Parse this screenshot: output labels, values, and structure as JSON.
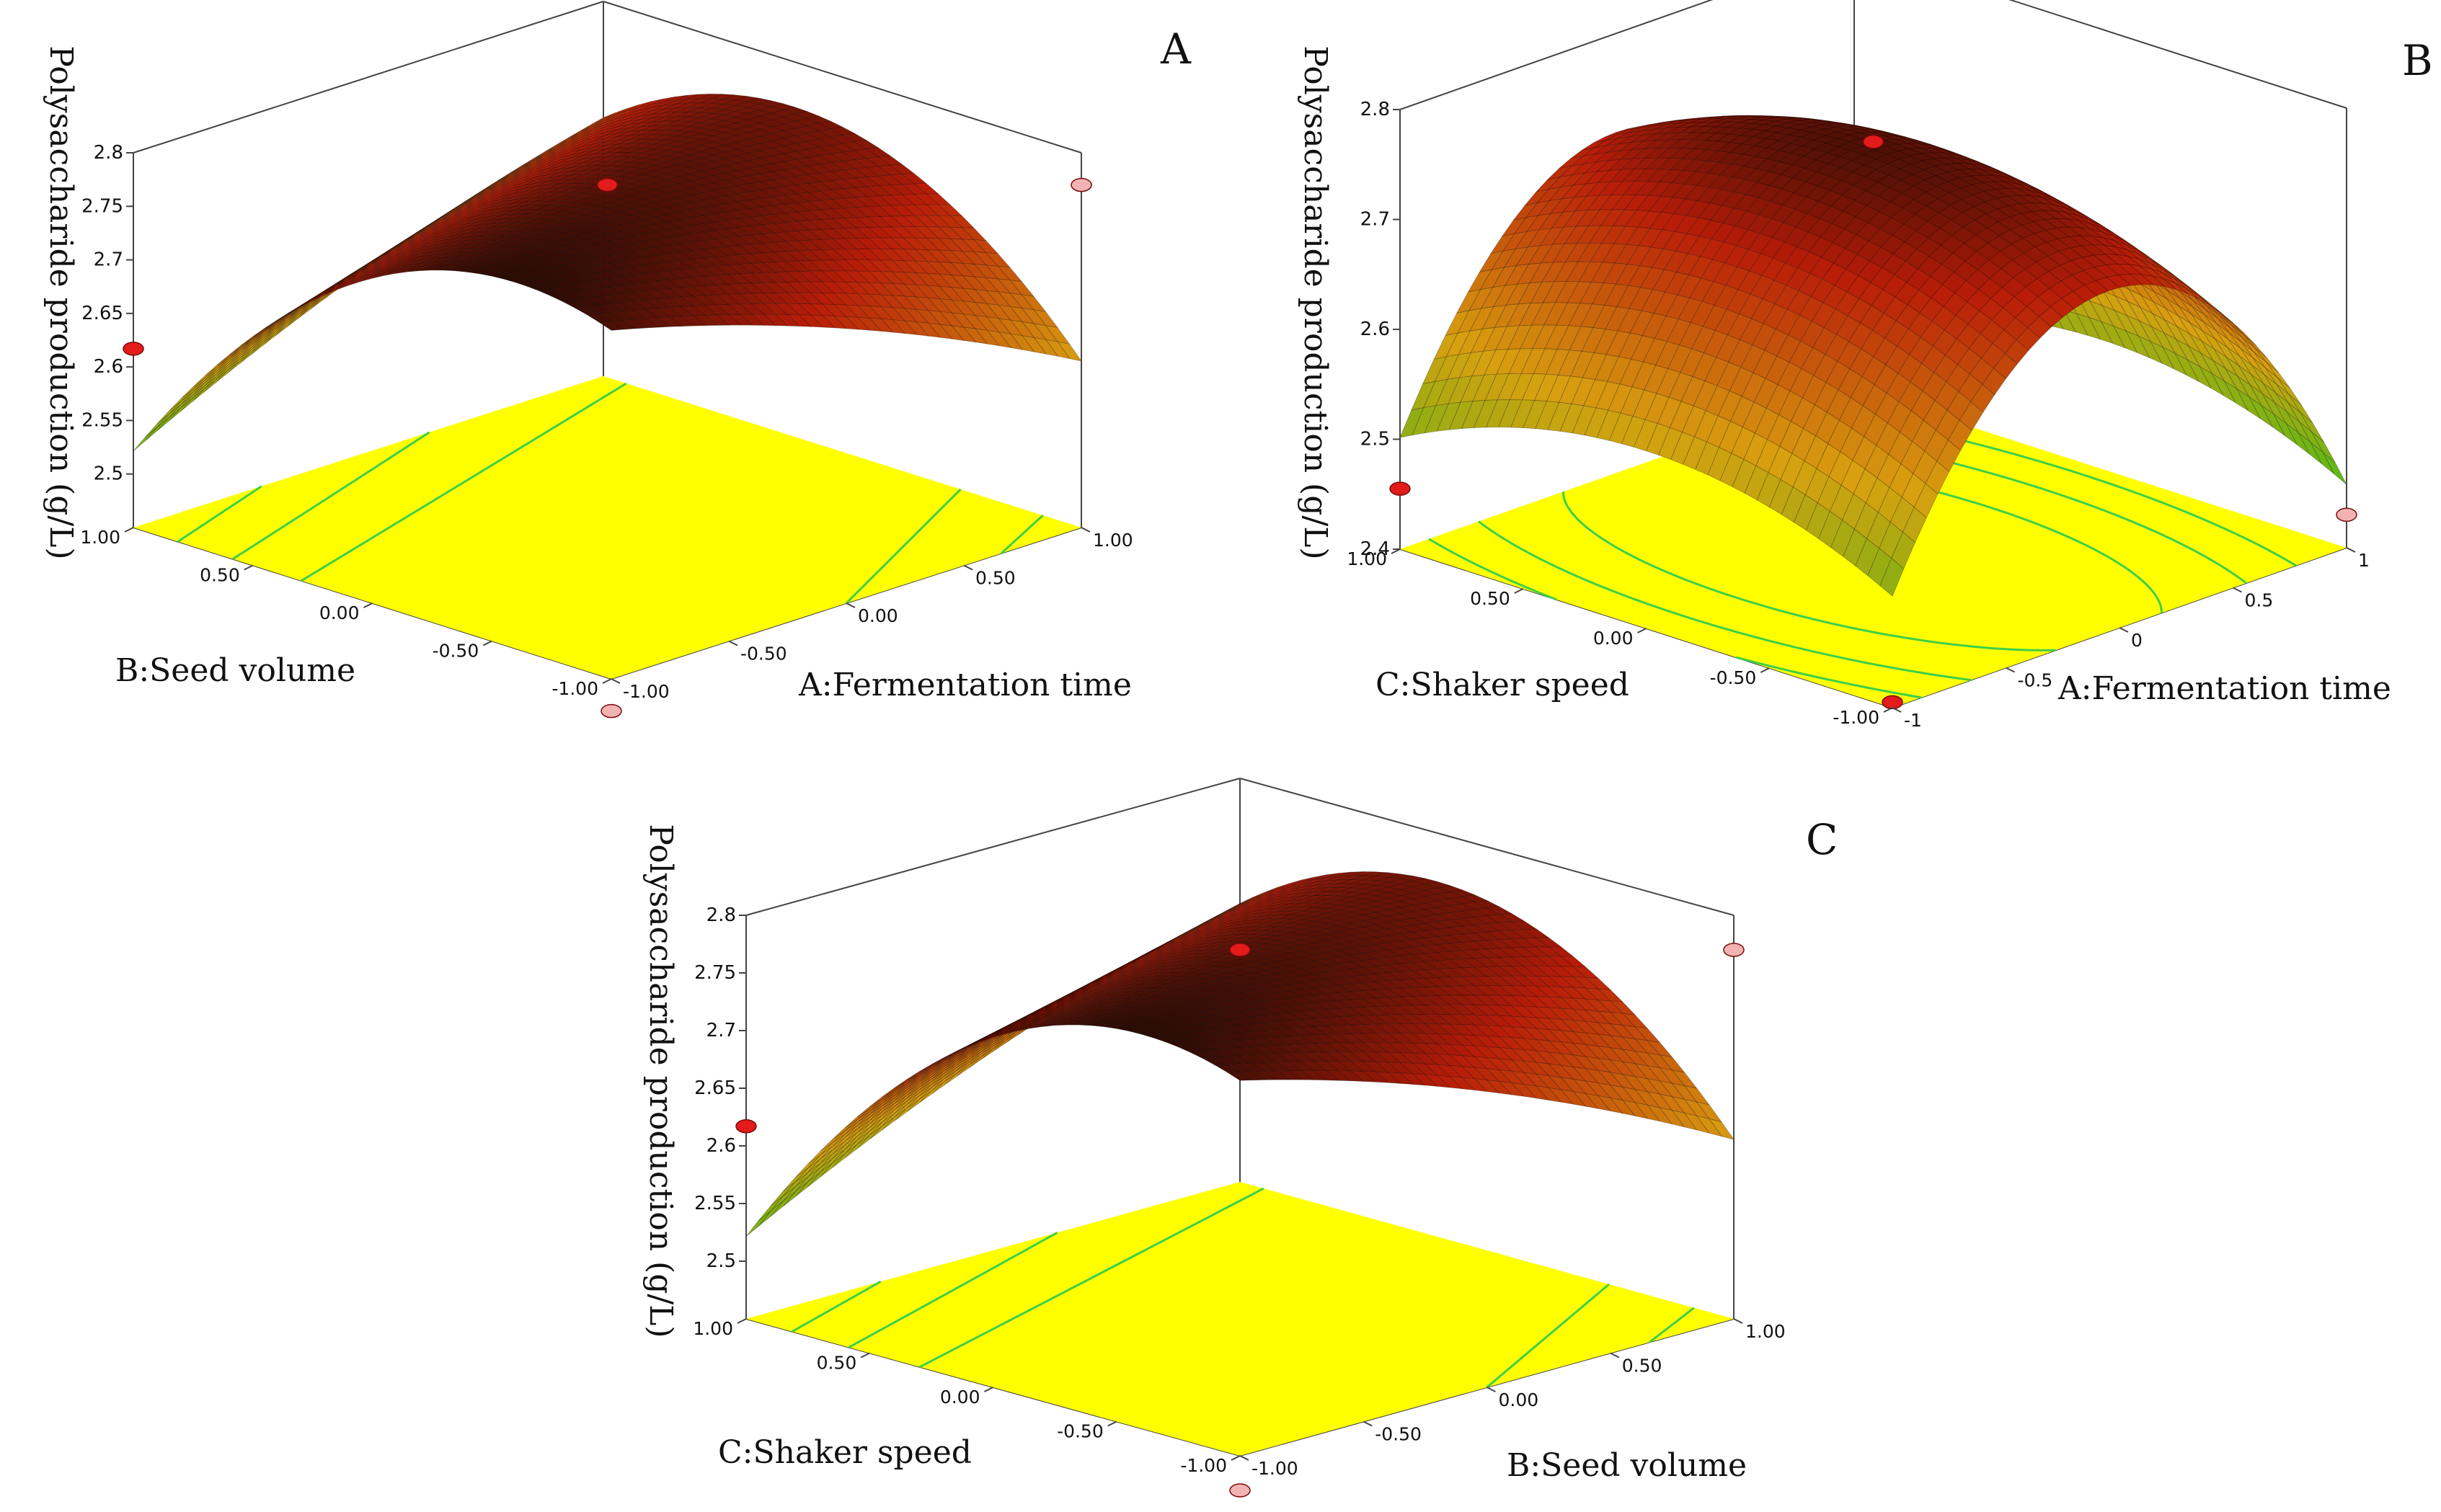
{
  "figure": {
    "panels": [
      "A",
      "B",
      "C"
    ]
  },
  "colors": {
    "floor": "#ffff00",
    "contour": "#3ecf4a",
    "surface_low": "#17c81a",
    "surface_mid": "#d8a010",
    "surface_high": "#b81c08",
    "surface_top": "#1a0a04",
    "point_red": "#e31b1b",
    "point_pink": "#f3b3b3"
  },
  "chart_data": [
    {
      "panel": "A",
      "type": "surface3d",
      "zlabel": "Polysaccharide production (g/L)",
      "xlabel": "A:Fermentation time",
      "ylabel": "B:Seed volume",
      "x_ticks": [
        "-1.00",
        "-0.50",
        "0.00",
        "0.50",
        "1.00"
      ],
      "y_ticks": [
        "-1.00",
        "-0.50",
        "0.00",
        "0.50",
        "1.00"
      ],
      "z_ticks": [
        "2.5",
        "2.55",
        "2.6",
        "2.65",
        "2.7",
        "2.75",
        "2.8"
      ],
      "zlim": [
        2.45,
        2.8
      ],
      "model": {
        "c": 2.7695,
        "bx": 0.0,
        "by": -0.042,
        "axx": -0.016,
        "ayy": -0.105,
        "axy": 0.085
      },
      "design_points": [
        {
          "x": -1,
          "y": -1,
          "z": 2.42,
          "color": "pink"
        },
        {
          "x": -1,
          "y": 1,
          "z": 2.617,
          "color": "red"
        },
        {
          "x": 0,
          "y": 0,
          "z": 2.77,
          "color": "red"
        },
        {
          "x": 1,
          "y": -1,
          "z": 2.77,
          "color": "pink"
        }
      ]
    },
    {
      "panel": "B",
      "type": "surface3d",
      "zlabel": "Polysaccharide production (g/L)",
      "xlabel": "A:Fermentation time",
      "ylabel": "C:Shaker speed",
      "x_ticks": [
        "-1",
        "-0.5",
        "0",
        "0.5",
        "1"
      ],
      "y_ticks": [
        "-1.00",
        "-0.50",
        "0.00",
        "0.50",
        "1.00"
      ],
      "z_ticks": [
        "2.4",
        "2.5",
        "2.6",
        "2.7",
        "2.8"
      ],
      "zlim": [
        2.4,
        2.8
      ],
      "model": {
        "c": 2.7695,
        "bx": -0.022,
        "by": 0.0,
        "axx": -0.23,
        "ayy": -0.06,
        "axy": 0.0
      },
      "design_points": [
        {
          "x": 1,
          "y": -1,
          "z": 2.43,
          "color": "pink"
        },
        {
          "x": -1,
          "y": 1,
          "z": 2.455,
          "color": "red"
        },
        {
          "x": 0,
          "y": 0,
          "z": 2.77,
          "color": "red"
        },
        {
          "x": -1,
          "y": -1,
          "z": 2.405,
          "color": "red"
        }
      ]
    },
    {
      "panel": "C",
      "type": "surface3d",
      "zlabel": "Polysaccharide production (g/L)",
      "xlabel": "B:Seed volume",
      "ylabel": "C:Shaker speed",
      "x_ticks": [
        "-1.00",
        "-0.50",
        "0.00",
        "0.50",
        "1.00"
      ],
      "y_ticks": [
        "-1.00",
        "-0.50",
        "0.00",
        "0.50",
        "1.00"
      ],
      "z_ticks": [
        "2.5",
        "2.55",
        "2.6",
        "2.65",
        "2.7",
        "2.75",
        "2.8"
      ],
      "zlim": [
        2.45,
        2.8
      ],
      "model": {
        "c": 2.7695,
        "bx": 0.0,
        "by": -0.042,
        "axx": -0.016,
        "ayy": -0.105,
        "axy": 0.085
      },
      "design_points": [
        {
          "x": -1,
          "y": -1,
          "z": 2.42,
          "color": "pink"
        },
        {
          "x": -1,
          "y": 1,
          "z": 2.617,
          "color": "red"
        },
        {
          "x": 0,
          "y": 0,
          "z": 2.77,
          "color": "red"
        },
        {
          "x": 1,
          "y": -1,
          "z": 2.77,
          "color": "pink"
        }
      ]
    }
  ]
}
